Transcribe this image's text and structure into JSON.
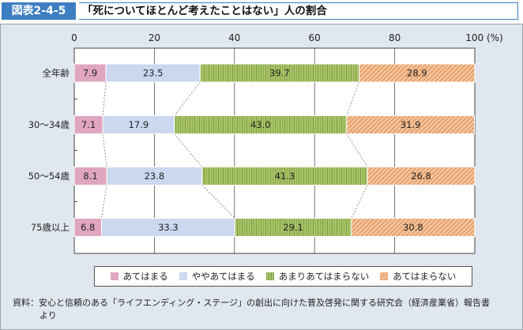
{
  "header": {
    "figure_number": "図表2-4-5",
    "title": "「死についてほとんど考えたことはない」人の割合"
  },
  "chart_data": {
    "type": "bar",
    "orientation": "horizontal",
    "stacked": true,
    "title": "「死についてほとんど考えたことはない」人の割合",
    "xlabel": "",
    "x_unit": "(%)",
    "xlim": [
      0,
      100
    ],
    "x_ticks": [
      "0",
      "20",
      "40",
      "60",
      "80",
      "100 (%)"
    ],
    "x_tick_values": [
      0,
      20,
      40,
      60,
      80,
      100
    ],
    "grid": true,
    "categories": [
      "全年齢",
      "30～34歳",
      "50～54歳",
      "75歳以上"
    ],
    "series": [
      {
        "name": "あてはまる",
        "color": "#e0a6c0",
        "pattern": "solid",
        "values": [
          7.9,
          7.1,
          8.1,
          6.8
        ]
      },
      {
        "name": "ややあてはまる",
        "color": "#cbd8ef",
        "pattern": "solid",
        "values": [
          23.5,
          17.9,
          23.8,
          33.3
        ]
      },
      {
        "name": "あまりあてはまらない",
        "color": "#a9c46a",
        "pattern": "vertical-stripes",
        "values": [
          39.7,
          43.0,
          41.3,
          29.1
        ]
      },
      {
        "name": "あてはまらない",
        "color": "#e9a36c",
        "pattern": "diagonal-hatch",
        "values": [
          28.9,
          31.9,
          26.8,
          30.8
        ]
      }
    ],
    "value_labels": [
      [
        "7.9",
        "23.5",
        "39.7",
        "28.9"
      ],
      [
        "7.1",
        "17.9",
        "43.0",
        "31.9"
      ],
      [
        "8.1",
        "23.8",
        "41.3",
        "26.8"
      ],
      [
        "6.8",
        "33.3",
        "29.1",
        "30.8"
      ]
    ],
    "connector_lines": "dotted",
    "legend_position": "bottom"
  },
  "legend": {
    "items": [
      "あてはまる",
      "ややあてはまる",
      "あまりあてはまらない",
      "あてはまらない"
    ]
  },
  "note": {
    "label": "資料：",
    "text": "安心と信頼のある「ライフエンディング・ステージ」の創出に向けた普及啓発に関する研究会（経済産業省）報告書",
    "continuation": "より"
  }
}
